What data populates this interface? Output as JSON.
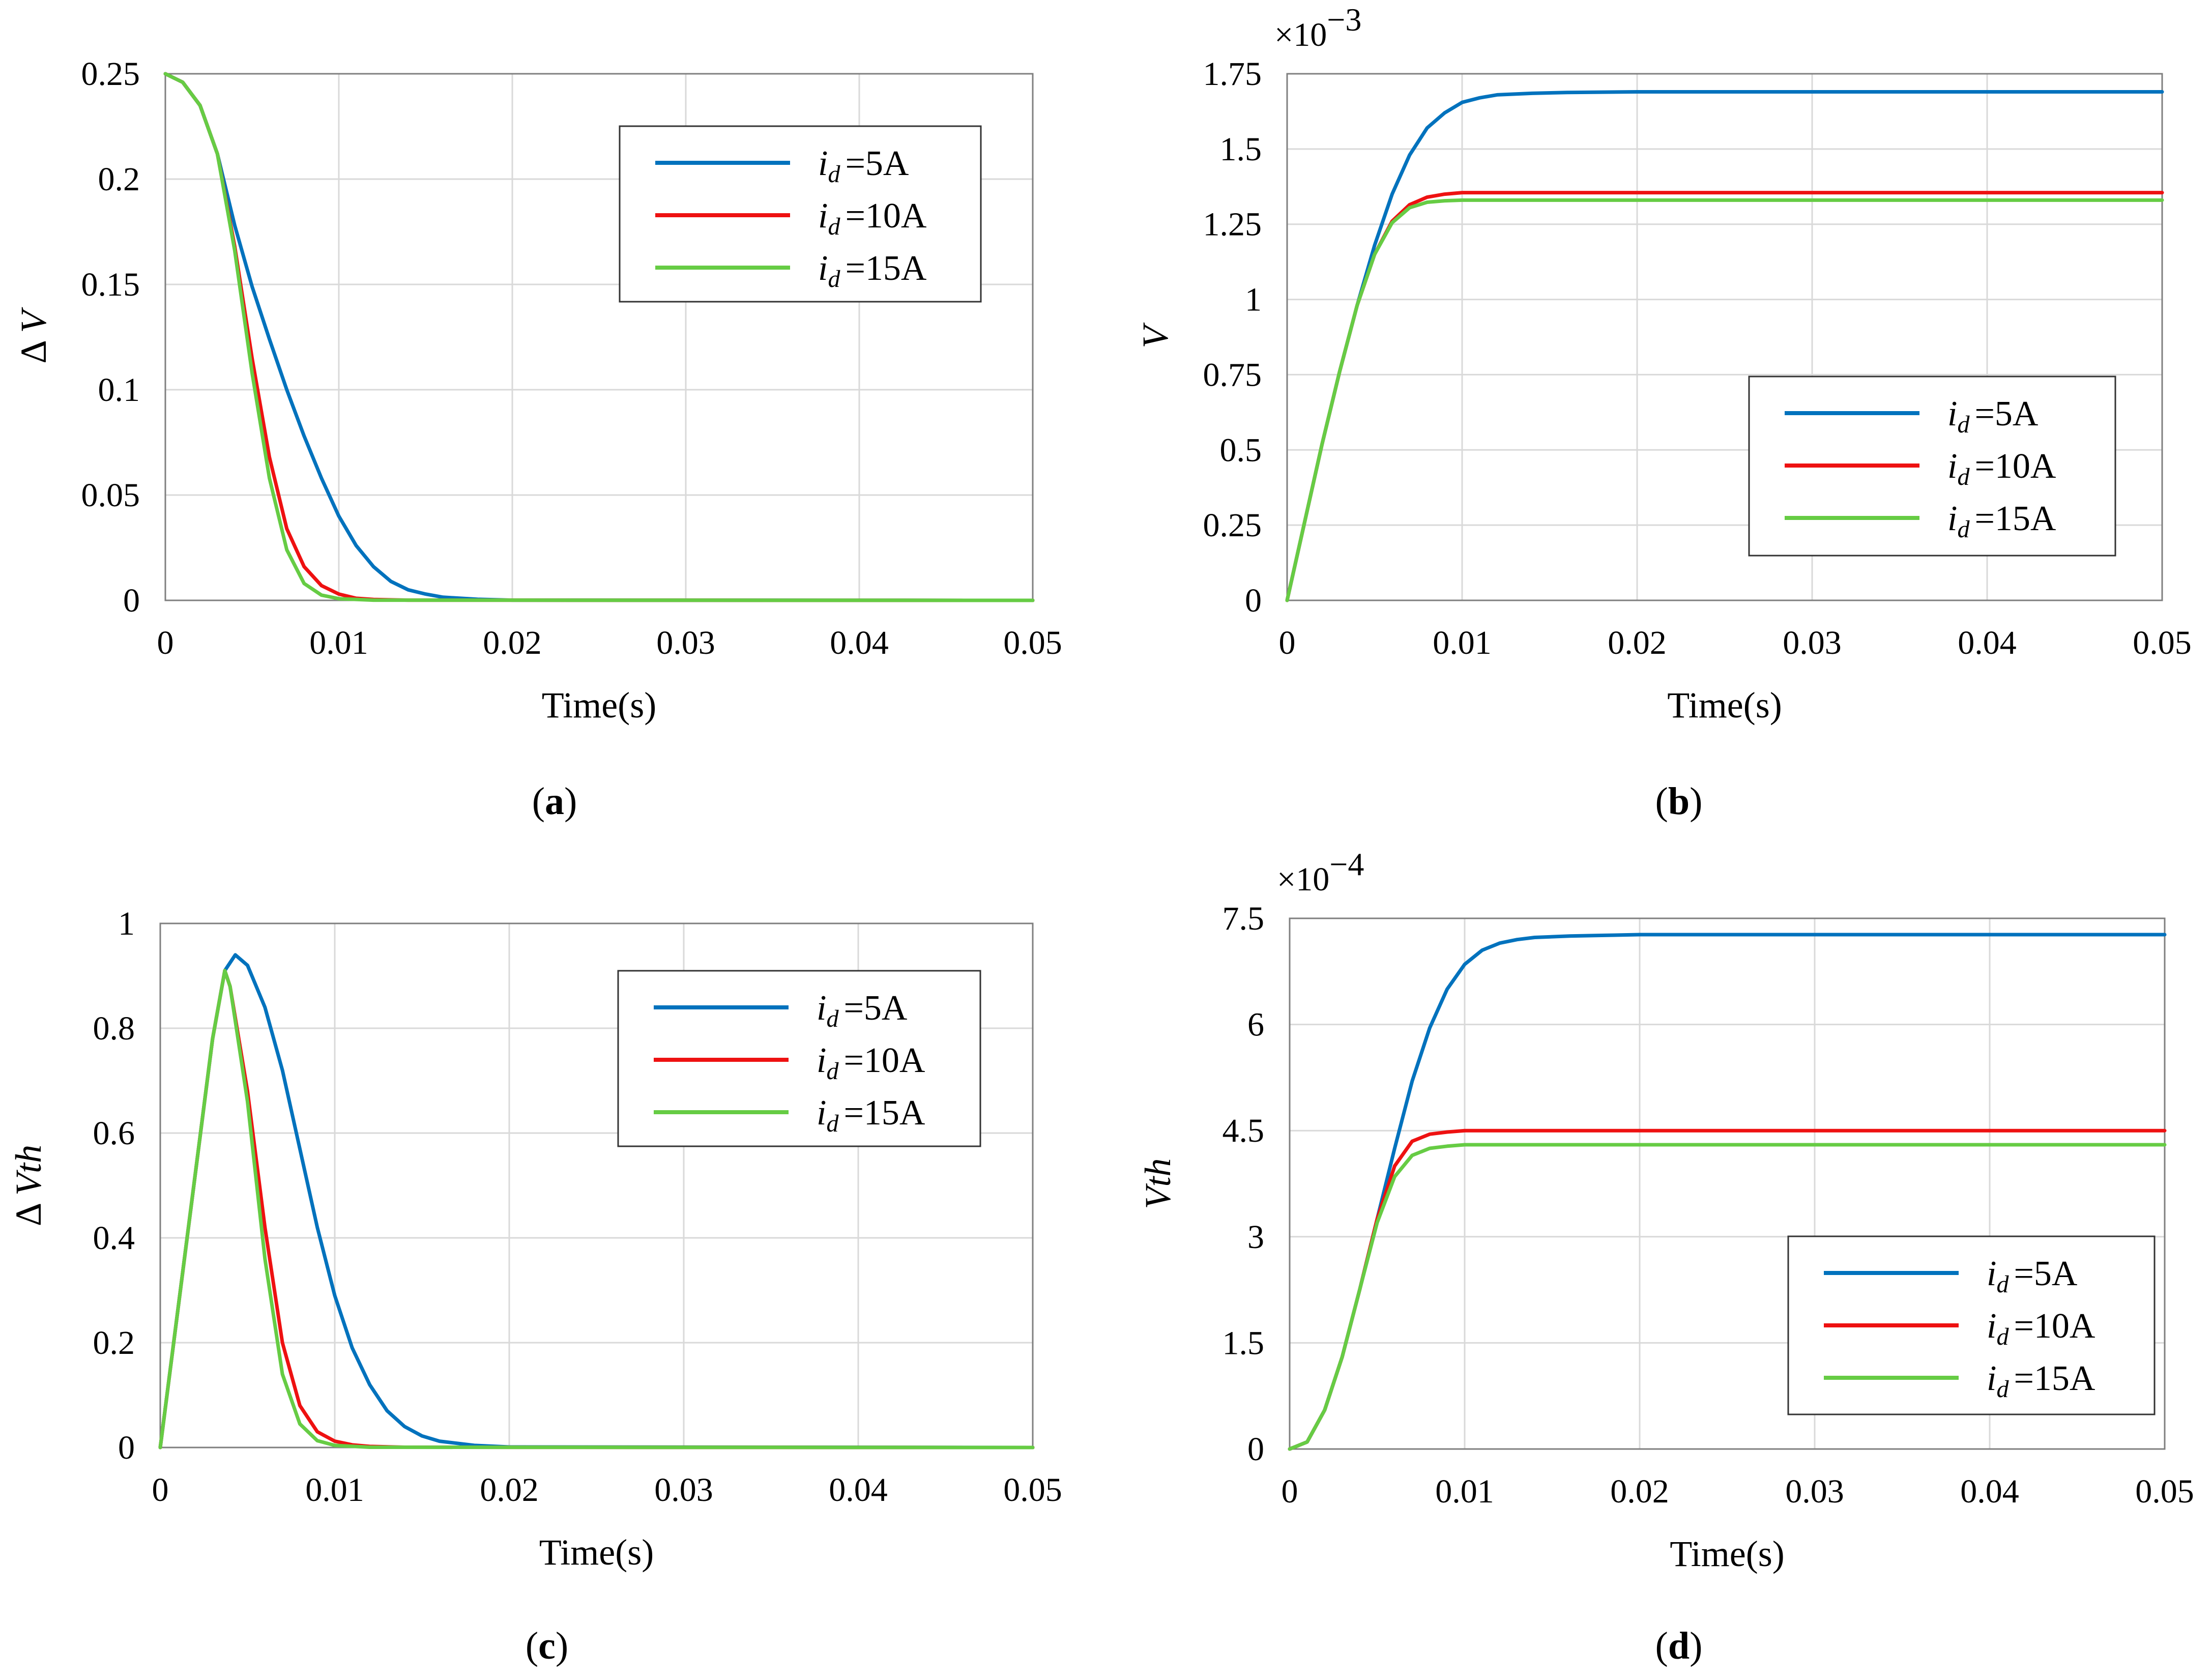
{
  "colors": {
    "id5": "#0072BD",
    "id10": "#EE1111",
    "id15": "#66CC44",
    "grid": "#d9d9d9",
    "frame": "#7f7f7f"
  },
  "legend": {
    "var": "i",
    "sub": "d",
    "entries": [
      "=5A",
      "=10A",
      "=15A"
    ]
  },
  "chart_data": [
    {
      "type": "line",
      "panel": "a",
      "panel_label": "a",
      "xlabel": "Time(s)",
      "ylabel_prefix": "Δ",
      "ylabel_var": "V",
      "xlim": [
        0,
        0.05
      ],
      "ylim": [
        0,
        0.25
      ],
      "xticks": [
        "0",
        "0.01",
        "0.02",
        "0.03",
        "0.04",
        "0.05"
      ],
      "yticks": [
        "0",
        "0.05",
        "0.1",
        "0.15",
        "0.2",
        "0.25"
      ],
      "multiplier": "",
      "legend_position": "top-right",
      "series": [
        {
          "name": "id=5A",
          "x": [
            0,
            0.001,
            0.002,
            0.003,
            0.004,
            0.005,
            0.006,
            0.007,
            0.008,
            0.009,
            0.01,
            0.011,
            0.012,
            0.013,
            0.014,
            0.015,
            0.016,
            0.018,
            0.02,
            0.05
          ],
          "y": [
            0.25,
            0.246,
            0.235,
            0.212,
            0.178,
            0.149,
            0.124,
            0.1,
            0.078,
            0.058,
            0.04,
            0.026,
            0.016,
            0.009,
            0.005,
            0.003,
            0.0015,
            0.0005,
            0.0001,
            0
          ]
        },
        {
          "name": "id=10A",
          "x": [
            0,
            0.001,
            0.002,
            0.003,
            0.004,
            0.005,
            0.006,
            0.007,
            0.008,
            0.009,
            0.01,
            0.011,
            0.012,
            0.014,
            0.05
          ],
          "y": [
            0.25,
            0.246,
            0.235,
            0.212,
            0.168,
            0.115,
            0.068,
            0.034,
            0.016,
            0.007,
            0.003,
            0.001,
            0.0004,
            0.0001,
            0
          ]
        },
        {
          "name": "id=15A",
          "x": [
            0,
            0.001,
            0.002,
            0.003,
            0.004,
            0.005,
            0.006,
            0.007,
            0.008,
            0.009,
            0.01,
            0.012,
            0.05
          ],
          "y": [
            0.25,
            0.246,
            0.235,
            0.212,
            0.166,
            0.108,
            0.058,
            0.024,
            0.008,
            0.0025,
            0.0008,
            0.0001,
            0
          ]
        }
      ]
    },
    {
      "type": "line",
      "panel": "b",
      "panel_label": "b",
      "xlabel": "Time(s)",
      "ylabel_prefix": "",
      "ylabel_var": "V",
      "xlim": [
        0,
        0.05
      ],
      "ylim": [
        0,
        1.75
      ],
      "xticks": [
        "0",
        "0.01",
        "0.02",
        "0.03",
        "0.04",
        "0.05"
      ],
      "yticks": [
        "0",
        "0.25",
        "0.5",
        "0.75",
        "1",
        "1.25",
        "1.5",
        "1.75"
      ],
      "multiplier": "×10",
      "multiplier_exp": "−3",
      "legend_position": "bottom-right",
      "series": [
        {
          "name": "id=5A",
          "x": [
            0,
            0.001,
            0.002,
            0.003,
            0.004,
            0.005,
            0.006,
            0.007,
            0.008,
            0.009,
            0.01,
            0.011,
            0.012,
            0.014,
            0.016,
            0.02,
            0.05
          ],
          "y": [
            0,
            0.26,
            0.52,
            0.76,
            0.98,
            1.18,
            1.35,
            1.48,
            1.57,
            1.62,
            1.655,
            1.67,
            1.68,
            1.685,
            1.688,
            1.69,
            1.69
          ]
        },
        {
          "name": "id=10A",
          "x": [
            0,
            0.001,
            0.002,
            0.003,
            0.004,
            0.005,
            0.006,
            0.007,
            0.008,
            0.009,
            0.01,
            0.012,
            0.05
          ],
          "y": [
            0,
            0.26,
            0.52,
            0.76,
            0.98,
            1.15,
            1.26,
            1.315,
            1.34,
            1.35,
            1.355,
            1.355,
            1.355
          ]
        },
        {
          "name": "id=15A",
          "x": [
            0,
            0.001,
            0.002,
            0.003,
            0.004,
            0.005,
            0.006,
            0.007,
            0.008,
            0.009,
            0.01,
            0.012,
            0.05
          ],
          "y": [
            0,
            0.26,
            0.52,
            0.76,
            0.98,
            1.15,
            1.255,
            1.305,
            1.323,
            1.328,
            1.33,
            1.33,
            1.33
          ]
        }
      ]
    },
    {
      "type": "line",
      "panel": "c",
      "panel_label": "c",
      "xlabel": "Time(s)",
      "ylabel_prefix": "Δ",
      "ylabel_var": "Vth",
      "xlim": [
        0,
        0.05
      ],
      "ylim": [
        0,
        1
      ],
      "xticks": [
        "0",
        "0.01",
        "0.02",
        "0.03",
        "0.04",
        "0.05"
      ],
      "yticks": [
        "0",
        "0.2",
        "0.4",
        "0.6",
        "0.8",
        "1"
      ],
      "multiplier": "",
      "legend_position": "top-right",
      "series": [
        {
          "name": "id=5A",
          "x": [
            0,
            0.001,
            0.002,
            0.003,
            0.0037,
            0.0043,
            0.005,
            0.006,
            0.007,
            0.008,
            0.009,
            0.01,
            0.011,
            0.012,
            0.013,
            0.014,
            0.015,
            0.016,
            0.018,
            0.02,
            0.05
          ],
          "y": [
            0,
            0.26,
            0.52,
            0.78,
            0.91,
            0.94,
            0.92,
            0.84,
            0.72,
            0.57,
            0.42,
            0.29,
            0.19,
            0.12,
            0.07,
            0.04,
            0.022,
            0.012,
            0.004,
            0.001,
            0
          ]
        },
        {
          "name": "id=10A",
          "x": [
            0,
            0.001,
            0.002,
            0.003,
            0.0037,
            0.004,
            0.005,
            0.006,
            0.007,
            0.008,
            0.009,
            0.01,
            0.011,
            0.012,
            0.014,
            0.05
          ],
          "y": [
            0,
            0.26,
            0.52,
            0.78,
            0.91,
            0.88,
            0.68,
            0.42,
            0.2,
            0.08,
            0.03,
            0.012,
            0.005,
            0.002,
            0.0005,
            0
          ]
        },
        {
          "name": "id=15A",
          "x": [
            0,
            0.001,
            0.002,
            0.003,
            0.0037,
            0.004,
            0.005,
            0.006,
            0.007,
            0.008,
            0.009,
            0.01,
            0.012,
            0.05
          ],
          "y": [
            0,
            0.26,
            0.52,
            0.78,
            0.91,
            0.88,
            0.66,
            0.36,
            0.14,
            0.045,
            0.013,
            0.004,
            0.0005,
            0
          ]
        }
      ]
    },
    {
      "type": "line",
      "panel": "d",
      "panel_label": "d",
      "xlabel": "Time(s)",
      "ylabel_prefix": "",
      "ylabel_var": "Vth",
      "xlim": [
        0,
        0.05
      ],
      "ylim": [
        0,
        7.5
      ],
      "xticks": [
        "0",
        "0.01",
        "0.02",
        "0.03",
        "0.04",
        "0.05"
      ],
      "yticks": [
        "0",
        "1.5",
        "3",
        "4.5",
        "6",
        "7.5"
      ],
      "multiplier": "×10",
      "multiplier_exp": "−4",
      "legend_position": "bottom-right",
      "series": [
        {
          "name": "id=5A",
          "x": [
            0,
            0.001,
            0.002,
            0.003,
            0.004,
            0.005,
            0.006,
            0.007,
            0.008,
            0.009,
            0.01,
            0.011,
            0.012,
            0.013,
            0.014,
            0.016,
            0.018,
            0.02,
            0.05
          ],
          "y": [
            0,
            0.1,
            0.55,
            1.3,
            2.25,
            3.25,
            4.25,
            5.2,
            5.95,
            6.5,
            6.85,
            7.05,
            7.15,
            7.2,
            7.23,
            7.25,
            7.26,
            7.27,
            7.27
          ]
        },
        {
          "name": "id=10A",
          "x": [
            0,
            0.001,
            0.002,
            0.003,
            0.004,
            0.005,
            0.006,
            0.007,
            0.008,
            0.009,
            0.01,
            0.012,
            0.05
          ],
          "y": [
            0,
            0.1,
            0.55,
            1.3,
            2.25,
            3.25,
            4.0,
            4.35,
            4.45,
            4.48,
            4.5,
            4.5,
            4.5
          ]
        },
        {
          "name": "id=15A",
          "x": [
            0,
            0.001,
            0.002,
            0.003,
            0.004,
            0.005,
            0.006,
            0.007,
            0.008,
            0.009,
            0.01,
            0.012,
            0.05
          ],
          "y": [
            0,
            0.1,
            0.55,
            1.3,
            2.25,
            3.2,
            3.85,
            4.15,
            4.25,
            4.28,
            4.3,
            4.3,
            4.3
          ]
        }
      ]
    }
  ]
}
